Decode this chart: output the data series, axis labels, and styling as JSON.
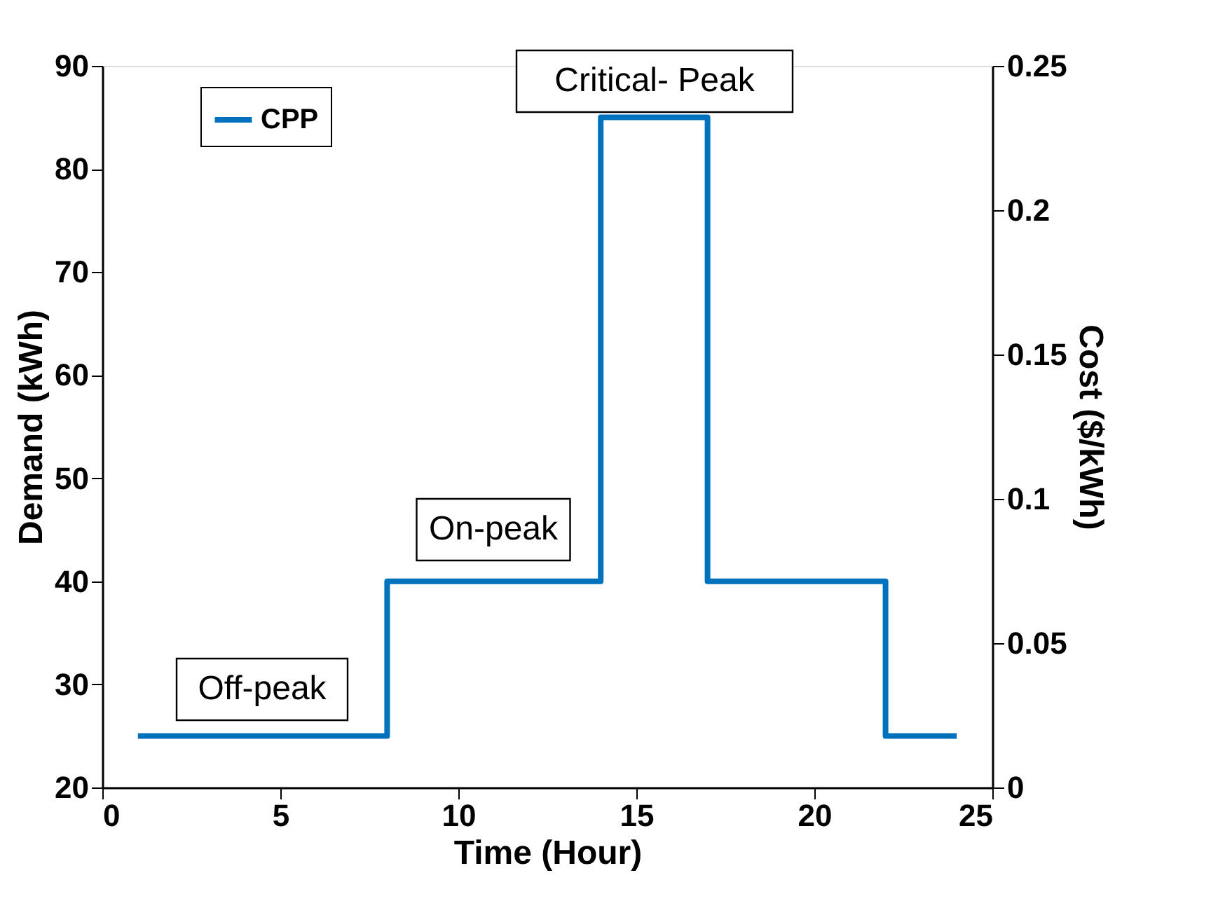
{
  "chart_data": {
    "type": "step",
    "xlabel": "Time (Hour)",
    "ylabel": "Demand (kWh)",
    "y2label": "Cost ($/kWh)",
    "x": [
      1,
      8,
      14,
      17,
      22,
      24
    ],
    "series": [
      {
        "name": "CPP",
        "color": "#0072bd",
        "values": [
          25,
          40,
          85,
          40,
          25,
          25
        ]
      }
    ],
    "xlim": [
      0,
      25
    ],
    "xticks": [
      0,
      5,
      10,
      15,
      20,
      25
    ],
    "ylim": [
      20,
      90
    ],
    "yticks": [
      20,
      30,
      40,
      50,
      60,
      70,
      80,
      90
    ],
    "y2lim": [
      0,
      0.25
    ],
    "y2ticks": [
      {
        "value": 0,
        "label": "0"
      },
      0.05,
      {
        "value": 0.1,
        "label": "0.1"
      },
      0.15,
      {
        "value": 0.2,
        "label": "0.2"
      },
      0.25
    ],
    "annotations": [
      "Off-peak",
      "On-peak",
      "Critical- Peak"
    ],
    "legend": "top left",
    "grid": false,
    "line_style": "solid",
    "marker": "none"
  }
}
